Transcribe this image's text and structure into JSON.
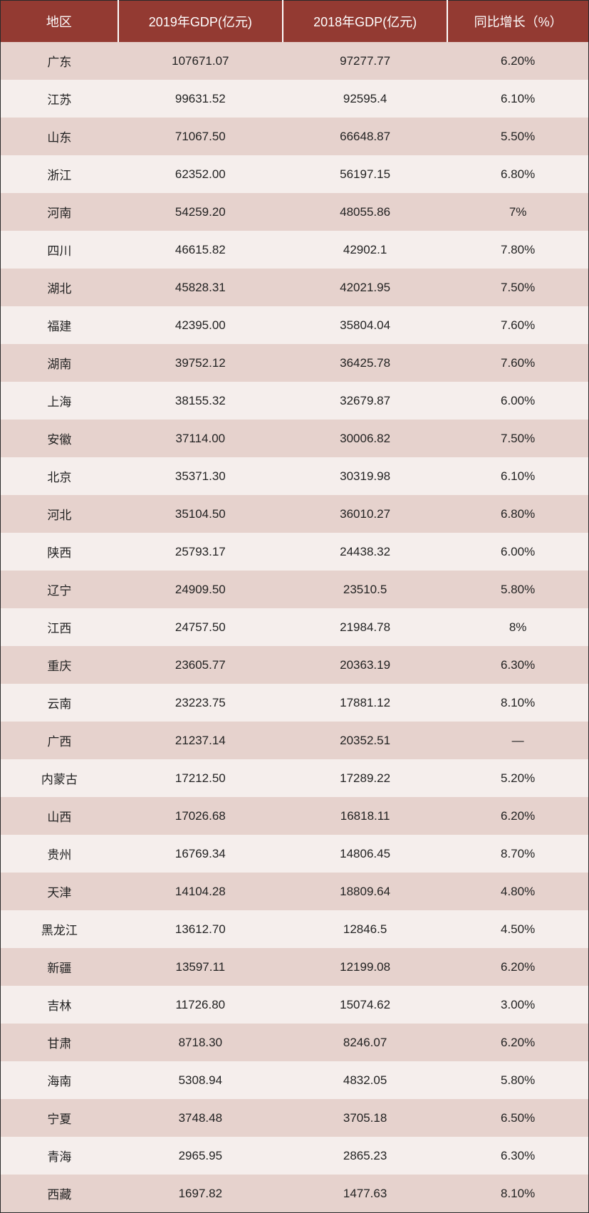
{
  "table": {
    "header_bg": "#933a32",
    "header_fg": "#ffffff",
    "row_odd_bg": "#e6d2cd",
    "row_even_bg": "#f5eeec",
    "border_color": "#2a2a2a",
    "header_fontsize": 18,
    "cell_fontsize": 17,
    "columns": [
      "地区",
      "2019年GDP(亿元)",
      "2018年GDP(亿元)",
      "同比增长（%）"
    ],
    "col_widths_pct": [
      20,
      28,
      28,
      24
    ],
    "rows": [
      [
        "广东",
        "107671.07",
        "97277.77",
        "6.20%"
      ],
      [
        "江苏",
        "99631.52",
        "92595.4",
        "6.10%"
      ],
      [
        "山东",
        "71067.50",
        "66648.87",
        "5.50%"
      ],
      [
        "浙江",
        "62352.00",
        "56197.15",
        "6.80%"
      ],
      [
        "河南",
        "54259.20",
        "48055.86",
        "7%"
      ],
      [
        "四川",
        "46615.82",
        "42902.1",
        "7.80%"
      ],
      [
        "湖北",
        "45828.31",
        "42021.95",
        "7.50%"
      ],
      [
        "福建",
        "42395.00",
        "35804.04",
        "7.60%"
      ],
      [
        "湖南",
        "39752.12",
        "36425.78",
        "7.60%"
      ],
      [
        "上海",
        "38155.32",
        "32679.87",
        "6.00%"
      ],
      [
        "安徽",
        "37114.00",
        "30006.82",
        "7.50%"
      ],
      [
        "北京",
        "35371.30",
        "30319.98",
        "6.10%"
      ],
      [
        "河北",
        "35104.50",
        "36010.27",
        "6.80%"
      ],
      [
        "陕西",
        "25793.17",
        "24438.32",
        "6.00%"
      ],
      [
        "辽宁",
        "24909.50",
        "23510.5",
        "5.80%"
      ],
      [
        "江西",
        "24757.50",
        "21984.78",
        "8%"
      ],
      [
        "重庆",
        "23605.77",
        "20363.19",
        "6.30%"
      ],
      [
        "云南",
        "23223.75",
        "17881.12",
        "8.10%"
      ],
      [
        "广西",
        "21237.14",
        "20352.51",
        "—"
      ],
      [
        "内蒙古",
        "17212.50",
        "17289.22",
        "5.20%"
      ],
      [
        "山西",
        "17026.68",
        "16818.11",
        "6.20%"
      ],
      [
        "贵州",
        "16769.34",
        "14806.45",
        "8.70%"
      ],
      [
        "天津",
        "14104.28",
        "18809.64",
        "4.80%"
      ],
      [
        "黑龙江",
        "13612.70",
        "12846.5",
        "4.50%"
      ],
      [
        "新疆",
        "13597.11",
        "12199.08",
        "6.20%"
      ],
      [
        "吉林",
        "11726.80",
        "15074.62",
        "3.00%"
      ],
      [
        "甘肃",
        "8718.30",
        "8246.07",
        "6.20%"
      ],
      [
        "海南",
        "5308.94",
        "4832.05",
        "5.80%"
      ],
      [
        "宁夏",
        "3748.48",
        "3705.18",
        "6.50%"
      ],
      [
        "青海",
        "2965.95",
        "2865.23",
        "6.30%"
      ],
      [
        "西藏",
        "1697.82",
        "1477.63",
        "8.10%"
      ]
    ]
  }
}
